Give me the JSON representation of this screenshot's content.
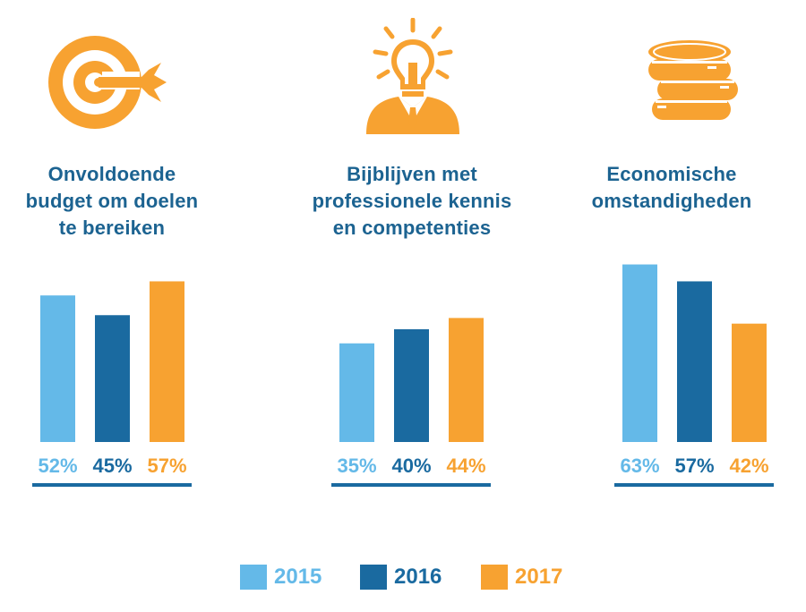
{
  "colors": {
    "y2015": "#64b9e8",
    "y2016": "#1a6aa0",
    "y2017": "#f7a231",
    "title": "#1c6391",
    "icon": "#f7a231"
  },
  "legend": [
    {
      "label": "2015",
      "color": "#64b9e8"
    },
    {
      "label": "2016",
      "color": "#1a6aa0"
    },
    {
      "label": "2017",
      "color": "#f7a231"
    }
  ],
  "chart_data": [
    {
      "type": "bar",
      "icon": "target-dart-icon",
      "title_lines": [
        "Onvoldoende",
        "budget om doelen",
        "te bereiken"
      ],
      "categories": [
        "2015",
        "2016",
        "2017"
      ],
      "values": [
        52,
        45,
        57
      ],
      "data_labels": [
        "52%",
        "45%",
        "57%"
      ],
      "ylim": [
        0,
        100
      ]
    },
    {
      "type": "bar",
      "icon": "lightbulb-head-icon",
      "title_lines": [
        "Bijblijven met",
        "professionele kennis",
        "en competenties"
      ],
      "categories": [
        "2015",
        "2016",
        "2017"
      ],
      "values": [
        35,
        40,
        44
      ],
      "data_labels": [
        "35%",
        "40%",
        "44%"
      ],
      "ylim": [
        0,
        100
      ]
    },
    {
      "type": "bar",
      "icon": "coin-stack-icon",
      "title_lines": [
        "Economische",
        "omstandigheden"
      ],
      "categories": [
        "2015",
        "2016",
        "2017"
      ],
      "values": [
        63,
        57,
        42
      ],
      "data_labels": [
        "63%",
        "57%",
        "42%"
      ],
      "ylim": [
        0,
        100
      ]
    }
  ]
}
